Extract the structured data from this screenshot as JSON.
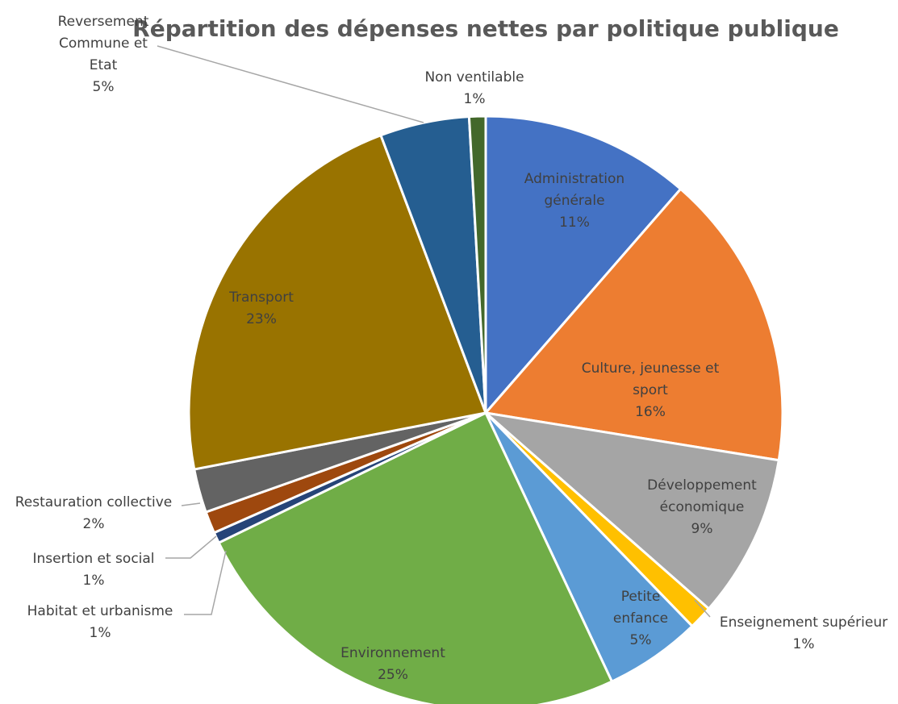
{
  "chart_data": {
    "type": "pie",
    "title": "Répartition des dépenses nettes par politique publique",
    "slices": [
      {
        "label": "Administration générale",
        "label_lines": [
          "Administration",
          "générale"
        ],
        "pct_label": "11%",
        "value": 11.5,
        "color": "#4472C4"
      },
      {
        "label": "Culture, jeunesse et sport",
        "label_lines": [
          "Culture, jeunesse et",
          "sport"
        ],
        "pct_label": "16%",
        "value": 16.3,
        "color": "#ED7D31"
      },
      {
        "label": "Développement économique",
        "label_lines": [
          "Développement",
          "économique"
        ],
        "pct_label": "9%",
        "value": 9.0,
        "color": "#A5A5A5"
      },
      {
        "label": "Enseignement supérieur",
        "label_lines": [
          "Enseignement supérieur"
        ],
        "pct_label": "1%",
        "value": 1.3,
        "color": "#FFC000"
      },
      {
        "label": "Petite enfance",
        "label_lines": [
          "Petite",
          "enfance"
        ],
        "pct_label": "5%",
        "value": 5.3,
        "color": "#5B9BD5"
      },
      {
        "label": "Environnement",
        "label_lines": [
          "Environnement"
        ],
        "pct_label": "25%",
        "value": 25.0,
        "color": "#70AD47"
      },
      {
        "label": "Habitat et urbanisme",
        "label_lines": [
          "Habitat et urbanisme"
        ],
        "pct_label": "1%",
        "value": 0.6,
        "color": "#264478"
      },
      {
        "label": "Insertion et social",
        "label_lines": [
          "Insertion et social"
        ],
        "pct_label": "1%",
        "value": 1.2,
        "color": "#9E480E"
      },
      {
        "label": "Restauration collective",
        "label_lines": [
          "Restauration collective"
        ],
        "pct_label": "2%",
        "value": 2.4,
        "color": "#636363"
      },
      {
        "label": "Transport",
        "label_lines": [
          "Transport"
        ],
        "pct_label": "23%",
        "value": 22.5,
        "color": "#997300"
      },
      {
        "label": "Reversement Commune et Etat",
        "label_lines": [
          "Reversement",
          "Commune et",
          "Etat"
        ],
        "pct_label": "5%",
        "value": 4.9,
        "color": "#255E91"
      },
      {
        "label": "Non ventilable",
        "label_lines": [
          "Non ventilable"
        ],
        "pct_label": "1%",
        "value": 0.9,
        "color": "#43682B"
      }
    ]
  }
}
